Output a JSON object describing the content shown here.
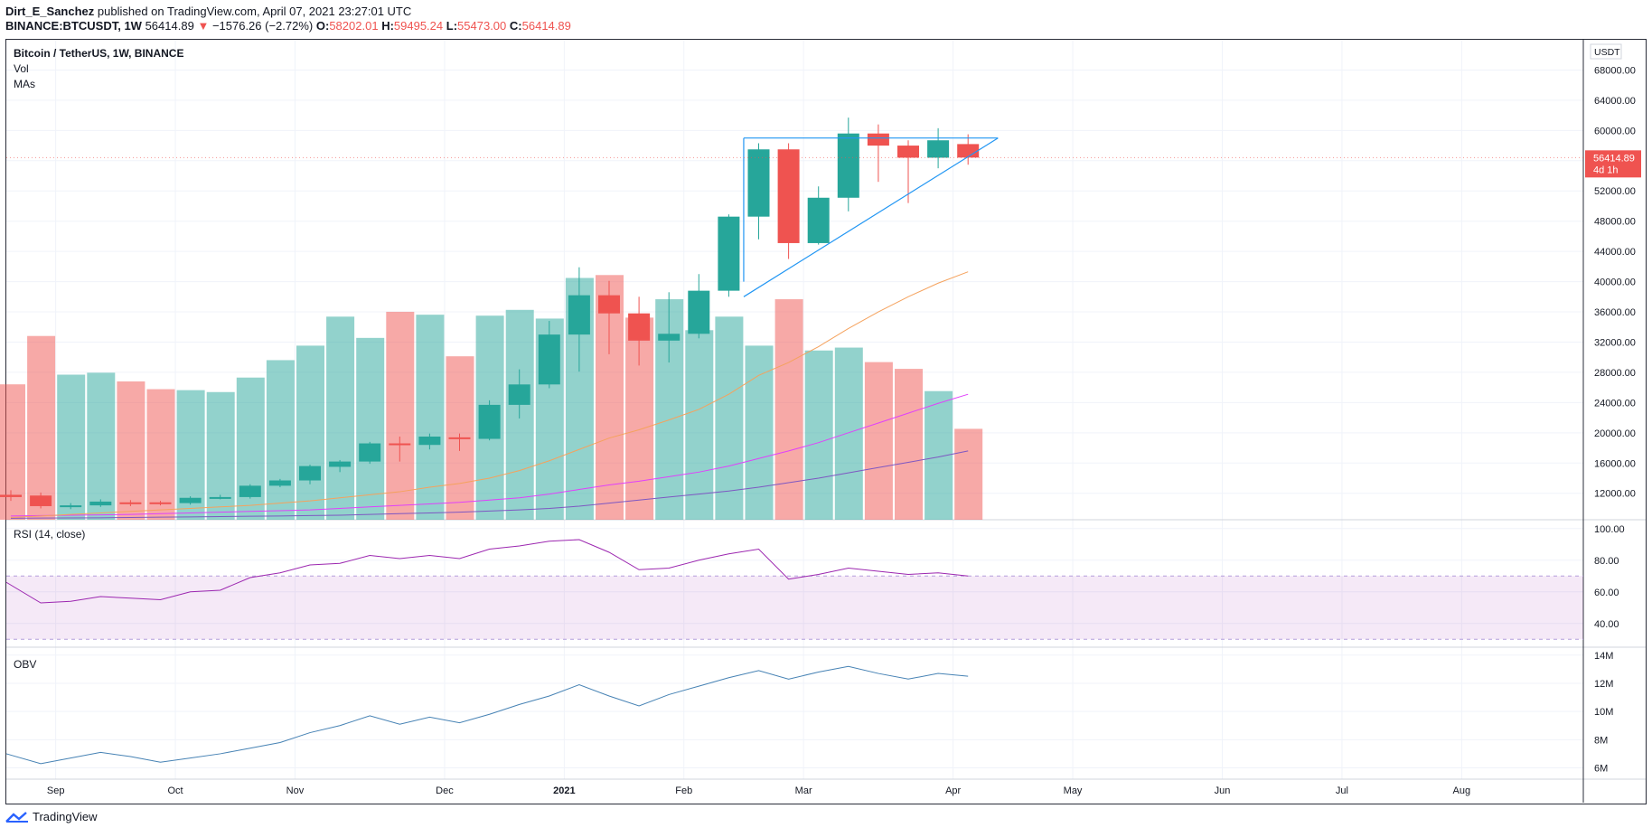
{
  "header": {
    "author": "Dirt_E_Sanchez",
    "published": "published on TradingView.com, April 07, 2021 23:27:01 UTC",
    "symbol": "BINANCE:BTCUSDT, 1W",
    "last": "56414.89",
    "arrow": "▼",
    "change": "−1576.26 (−2.72%)",
    "o_label": "O:",
    "o_val": "58202.01",
    "h_label": "H:",
    "h_val": "59495.24",
    "l_label": "L:",
    "l_val": "55473.00",
    "c_label": "C:",
    "c_val": "56414.89"
  },
  "legends": {
    "main_title": "Bitcoin / TetherUS, 1W, BINANCE",
    "vol": "Vol",
    "mas": "MAs",
    "rsi": "RSI (14, close)",
    "obv": "OBV"
  },
  "currency_tag": "USDT",
  "last_price_tag": {
    "price": "56414.89",
    "countdown": "4d 1h"
  },
  "footer": {
    "brand": "TradingView"
  },
  "colors": {
    "up": "#26a69a",
    "down": "#ef5350",
    "ma20": "#f5a25d",
    "ma50": "#e040fb",
    "ma100": "#7e57c2",
    "rsi": "#9c27b0",
    "obv": "#4682b4",
    "trend": "#2196f3"
  },
  "chart_data": [
    {
      "type": "candlestick",
      "title": "Bitcoin / TetherUS, 1W, BINANCE",
      "ylabel": "USDT",
      "ylim": [
        8500,
        72000
      ],
      "y_ticks": [
        12000,
        16000,
        20000,
        24000,
        28000,
        32000,
        36000,
        40000,
        44000,
        48000,
        52000,
        56000,
        60000,
        64000,
        68000
      ],
      "y_tick_labels": [
        "12000.00",
        "16000.00",
        "20000.00",
        "24000.00",
        "28000.00",
        "32000.00",
        "36000.00",
        "40000.00",
        "44000.00",
        "48000.00",
        "52000.00",
        "56000.00",
        "60000.00",
        "64000.00",
        "68000.00"
      ],
      "y_top_partial_label": "7",
      "x_ticks": [
        {
          "label": "Sep",
          "week": 1.5
        },
        {
          "label": "Oct",
          "week": 5.5
        },
        {
          "label": "Nov",
          "week": 9.5
        },
        {
          "label": "Dec",
          "week": 14.5
        },
        {
          "label": "2021",
          "week": 18.5,
          "bold": true
        },
        {
          "label": "Feb",
          "week": 22.5
        },
        {
          "label": "Mar",
          "week": 26.5
        },
        {
          "label": "Apr",
          "week": 31.5
        },
        {
          "label": "May",
          "week": 35.5
        },
        {
          "label": "Jun",
          "week": 40.5
        },
        {
          "label": "Jul",
          "week": 44.5
        },
        {
          "label": "Aug",
          "week": 48.5
        }
      ],
      "candles": [
        {
          "o": 11800,
          "h": 12400,
          "l": 11000,
          "c": 11500
        },
        {
          "o": 11700,
          "h": 12100,
          "l": 10000,
          "c": 10300
        },
        {
          "o": 10300,
          "h": 10700,
          "l": 9900,
          "c": 10400
        },
        {
          "o": 10400,
          "h": 11200,
          "l": 10200,
          "c": 10900
        },
        {
          "o": 10800,
          "h": 11100,
          "l": 10300,
          "c": 10700
        },
        {
          "o": 10800,
          "h": 11000,
          "l": 10400,
          "c": 10700
        },
        {
          "o": 10700,
          "h": 11600,
          "l": 10500,
          "c": 11400
        },
        {
          "o": 11400,
          "h": 11800,
          "l": 11200,
          "c": 11500
        },
        {
          "o": 11500,
          "h": 13200,
          "l": 11300,
          "c": 13000
        },
        {
          "o": 13000,
          "h": 13900,
          "l": 12800,
          "c": 13700
        },
        {
          "o": 13700,
          "h": 15800,
          "l": 13200,
          "c": 15600
        },
        {
          "o": 15500,
          "h": 16400,
          "l": 14800,
          "c": 16200
        },
        {
          "o": 16200,
          "h": 18800,
          "l": 15900,
          "c": 18600
        },
        {
          "o": 18600,
          "h": 19500,
          "l": 16200,
          "c": 18400
        },
        {
          "o": 18400,
          "h": 19900,
          "l": 17800,
          "c": 19500
        },
        {
          "o": 19400,
          "h": 19900,
          "l": 17600,
          "c": 19200
        },
        {
          "o": 19200,
          "h": 24300,
          "l": 19000,
          "c": 23700
        },
        {
          "o": 23700,
          "h": 28400,
          "l": 21900,
          "c": 26400
        },
        {
          "o": 26400,
          "h": 34800,
          "l": 25900,
          "c": 33000
        },
        {
          "o": 33000,
          "h": 41900,
          "l": 28100,
          "c": 38200
        },
        {
          "o": 38200,
          "h": 40100,
          "l": 30400,
          "c": 35800
        },
        {
          "o": 35800,
          "h": 38000,
          "l": 28900,
          "c": 32200
        },
        {
          "o": 32200,
          "h": 38600,
          "l": 29300,
          "c": 33100
        },
        {
          "o": 33100,
          "h": 41000,
          "l": 32500,
          "c": 38800
        },
        {
          "o": 38800,
          "h": 48900,
          "l": 38000,
          "c": 48600
        },
        {
          "o": 48600,
          "h": 58300,
          "l": 45600,
          "c": 57500
        },
        {
          "o": 57500,
          "h": 58300,
          "l": 43000,
          "c": 45100
        },
        {
          "o": 45100,
          "h": 52600,
          "l": 44900,
          "c": 51100
        },
        {
          "o": 51100,
          "h": 61700,
          "l": 49300,
          "c": 59600
        },
        {
          "o": 59600,
          "h": 60800,
          "l": 53200,
          "c": 58000
        },
        {
          "o": 58000,
          "h": 58700,
          "l": 50400,
          "c": 56400
        },
        {
          "o": 56400,
          "h": 60300,
          "l": 55000,
          "c": 58700
        },
        {
          "o": 58200,
          "h": 59495,
          "l": 55473,
          "c": 56415
        }
      ],
      "volume": [
        14000,
        19000,
        15000,
        15200,
        14300,
        13500,
        13400,
        13200,
        14700,
        16500,
        18000,
        21000,
        18800,
        21500,
        21200,
        16900,
        21100,
        21700,
        20800,
        25000,
        25300,
        20900,
        22800,
        19600,
        21000,
        18000,
        22800,
        17500,
        17800,
        16300,
        15600,
        13300,
        9400
      ],
      "ma20": [
        8800,
        9000,
        9200,
        9400,
        9600,
        9800,
        10000,
        10200,
        10400,
        10700,
        11000,
        11400,
        11800,
        12200,
        12800,
        13300,
        14000,
        15000,
        16300,
        17800,
        19300,
        20400,
        21700,
        23100,
        25100,
        27600,
        29300,
        31400,
        33800,
        36000,
        38000,
        39800,
        41300
      ],
      "ma50": [
        9000,
        9050,
        9100,
        9150,
        9200,
        9300,
        9400,
        9500,
        9600,
        9700,
        9800,
        10000,
        10200,
        10400,
        10600,
        10800,
        11100,
        11400,
        11900,
        12500,
        13100,
        13600,
        14200,
        14800,
        15600,
        16600,
        17600,
        18700,
        20000,
        21300,
        22600,
        23900,
        25100
      ],
      "ma100": [
        8700,
        8720,
        8740,
        8760,
        8800,
        8840,
        8880,
        8920,
        8960,
        9000,
        9050,
        9100,
        9200,
        9300,
        9400,
        9500,
        9650,
        9800,
        10000,
        10300,
        10700,
        11100,
        11500,
        11900,
        12300,
        12800,
        13400,
        14000,
        14700,
        15400,
        16100,
        16800,
        17600
      ],
      "trendlines": [
        {
          "w1": 24.5,
          "p1": 38000,
          "w2": 33.0,
          "p2": 59000
        },
        {
          "w1": 24.5,
          "p1": 59000,
          "w2": 33.0,
          "p2": 59000
        },
        {
          "w1": 24.5,
          "p1": 59000,
          "w2": 24.5,
          "p2": 40000
        }
      ]
    },
    {
      "type": "line",
      "title": "RSI (14, close)",
      "ylim": [
        25,
        105
      ],
      "y_ticks": [
        40,
        60,
        80,
        100
      ],
      "y_tick_labels": [
        "40.00",
        "60.00",
        "80.00",
        "100.00"
      ],
      "band": [
        30,
        70
      ],
      "values": [
        66,
        53,
        54,
        57,
        56,
        55,
        60,
        61,
        69,
        72,
        77,
        78,
        83,
        81,
        83,
        81,
        87,
        89,
        92,
        93,
        85,
        74,
        75,
        80,
        84,
        87,
        68,
        71,
        75,
        73,
        71,
        72,
        70
      ]
    },
    {
      "type": "line",
      "title": "OBV",
      "ylim": [
        5200000,
        14500000
      ],
      "y_ticks": [
        6000000,
        8000000,
        10000000,
        12000000,
        14000000
      ],
      "y_tick_labels": [
        "6M",
        "8M",
        "10M",
        "12M",
        "14M"
      ],
      "values": [
        7000000,
        6300000,
        6700000,
        7100000,
        6800000,
        6400000,
        6700000,
        7000000,
        7400000,
        7800000,
        8500000,
        9000000,
        9700000,
        9100000,
        9600000,
        9200000,
        9800000,
        10500000,
        11100000,
        11900000,
        11100000,
        10400000,
        11200000,
        11800000,
        12400000,
        12900000,
        12300000,
        12800000,
        13200000,
        12700000,
        12300000,
        12700000,
        12500000
      ]
    }
  ]
}
